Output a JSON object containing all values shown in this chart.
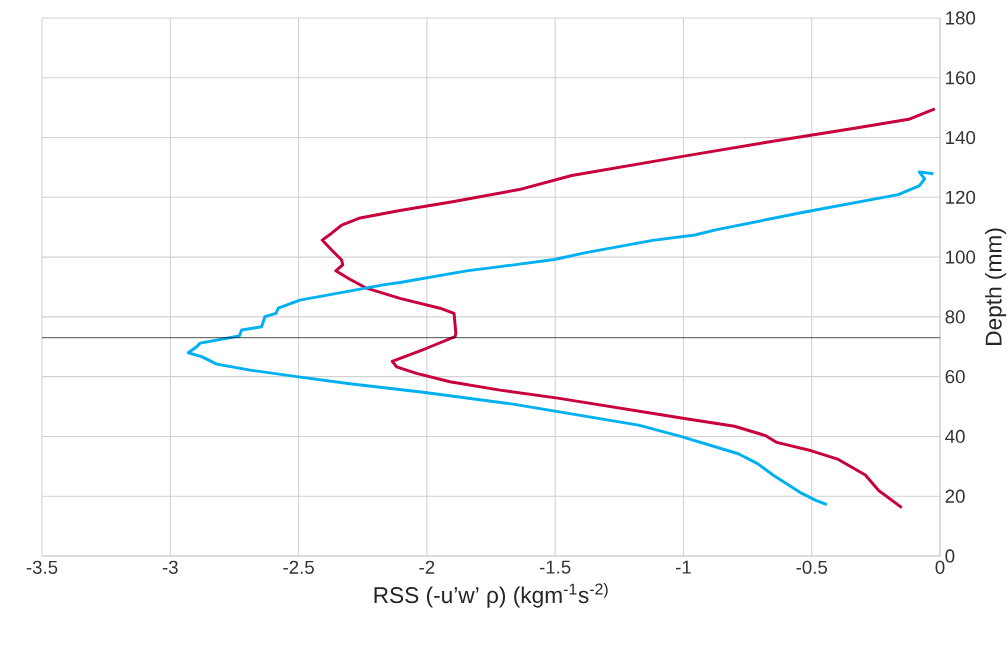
{
  "chart_data": {
    "type": "line",
    "xlabel": "RSS (-u’w’ ρ) (kgm$^{-1}$s$^{-2)}$",
    "ylabel": "Depth (mm)",
    "xlim": [
      -3.5,
      0
    ],
    "xticks": [
      -3.5,
      -3,
      -2.5,
      -2,
      -1.5,
      -1,
      -0.5,
      0
    ],
    "ylim": [
      0,
      180
    ],
    "yticks": [
      0,
      20,
      40,
      60,
      80,
      100,
      120,
      140,
      160,
      180
    ],
    "grid": true,
    "marker": "none",
    "line_style": "solid",
    "ref_lines": [
      {
        "axis": "y",
        "value": 73,
        "color": "#000000"
      }
    ],
    "series": [
      {
        "color": "#c8003c",
        "x": [
          -0.02,
          -0.122,
          -0.327,
          -0.669,
          -0.997,
          -1.435,
          -1.64,
          -1.9,
          -2.105,
          -2.26,
          -2.332,
          -2.371,
          -2.408,
          -2.371,
          -2.332,
          -2.328,
          -2.355,
          -2.3,
          -2.235,
          -2.105,
          -1.949,
          -1.894,
          -1.887,
          -1.89,
          -2.001,
          -2.135,
          -2.118,
          -2.04,
          -1.91,
          -1.715,
          -1.49,
          -0.996,
          -0.801,
          -0.681,
          -0.636,
          -0.501,
          -0.396,
          -0.291,
          -0.239,
          -0.149
        ],
        "values": [
          149.6,
          146.1,
          143.2,
          138.5,
          133.8,
          127.3,
          122.6,
          118.5,
          115.6,
          113.1,
          110.7,
          108.0,
          105.7,
          102.4,
          99.0,
          97.4,
          95.4,
          92.6,
          89.6,
          86.2,
          82.9,
          81.2,
          74.5,
          73.4,
          69.5,
          65.1,
          63.3,
          61.1,
          58.3,
          55.5,
          52.8,
          46.0,
          43.4,
          40.3,
          38.0,
          35.2,
          32.3,
          27.1,
          21.9,
          16.2
        ]
      },
      {
        "color": "#00b0f0",
        "x": [
          -0.026,
          -0.081,
          -0.06,
          -0.081,
          -0.163,
          -0.532,
          -0.874,
          -0.956,
          -1.12,
          -1.38,
          -1.503,
          -1.715,
          -1.845,
          -2.105,
          -2.17,
          -2.495,
          -2.579,
          -2.588,
          -2.631,
          -2.644,
          -2.722,
          -2.731,
          -2.884,
          -2.897,
          -2.93,
          -2.878,
          -2.819,
          -2.689,
          -2.507,
          -2.3,
          -2.015,
          -1.67,
          -1.175,
          -1.011,
          -0.786,
          -0.711,
          -0.651,
          -0.546,
          -0.486,
          -0.441
        ],
        "values": [
          127.9,
          128.5,
          126.2,
          123.8,
          120.9,
          115.0,
          109.1,
          107.4,
          105.6,
          101.5,
          99.2,
          96.8,
          95.4,
          91.5,
          90.7,
          85.6,
          82.9,
          81.2,
          80.1,
          76.7,
          75.6,
          73.6,
          71.2,
          70.0,
          68.0,
          66.7,
          64.2,
          62.2,
          60.0,
          57.6,
          54.8,
          50.9,
          43.8,
          40.0,
          34.2,
          30.9,
          27.1,
          21.3,
          18.7,
          17.2
        ]
      }
    ]
  }
}
